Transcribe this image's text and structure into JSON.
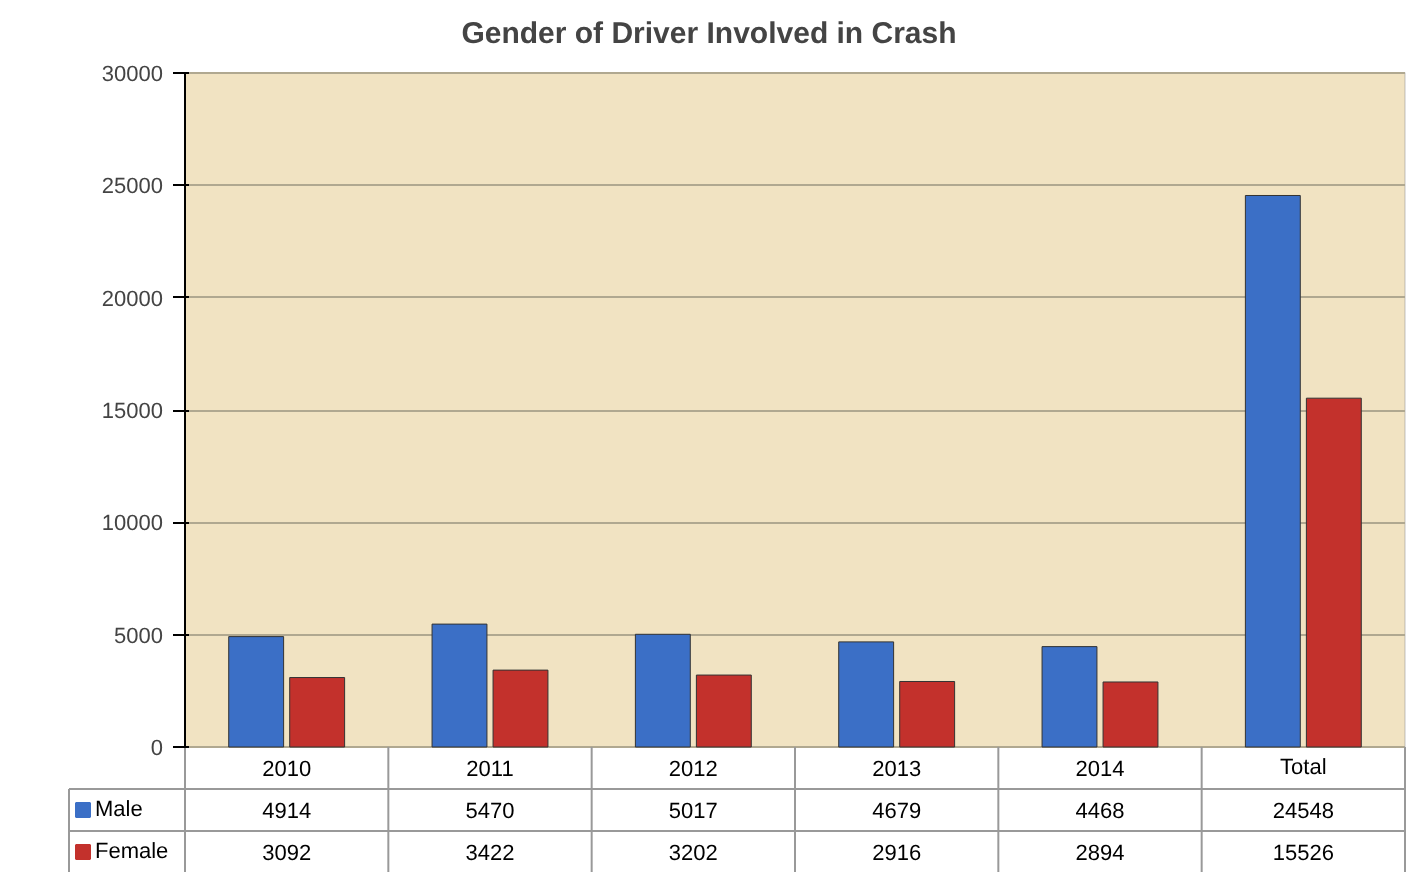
{
  "chart_data": {
    "type": "bar",
    "title": "Gender of Driver Involved in Crash",
    "categories": [
      "2010",
      "2011",
      "2012",
      "2013",
      "2014",
      "Total"
    ],
    "series": [
      {
        "name": "Male",
        "color": "#3b6fc6",
        "values": [
          4914,
          5470,
          5017,
          4679,
          4468,
          24548
        ]
      },
      {
        "name": "Female",
        "color": "#c3312c",
        "values": [
          3092,
          3422,
          3202,
          2916,
          2894,
          15526
        ]
      }
    ],
    "ylim": [
      0,
      30000
    ],
    "yticks": [
      0,
      5000,
      10000,
      15000,
      20000,
      25000,
      30000
    ],
    "grid": "y",
    "data_labels": true,
    "legend": "bottom left"
  }
}
